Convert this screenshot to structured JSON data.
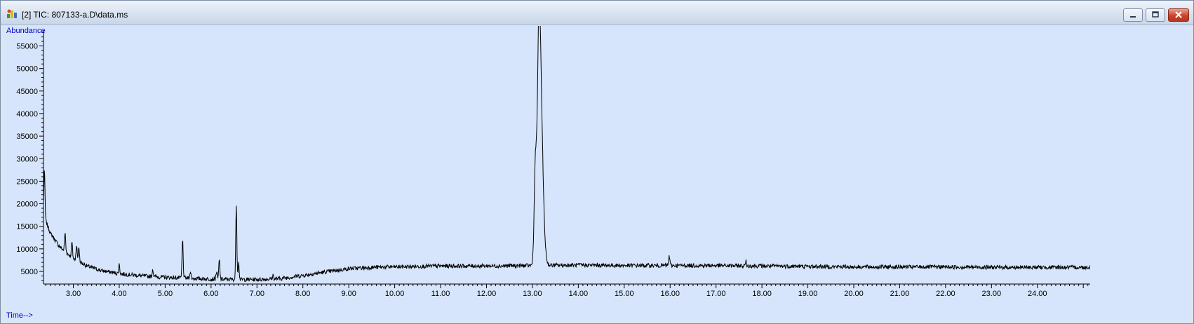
{
  "window": {
    "title": "[2] TIC: 807133-a.D\\data.ms",
    "colors": {
      "plot_bg": "#d6e5fb",
      "trace": "#000000",
      "axis_label": "#0000c8"
    }
  },
  "chart_data": {
    "type": "line",
    "ylabel": "Abundance",
    "xlabel": "Time-->",
    "xlim": [
      2.35,
      25.15
    ],
    "ylim": [
      2200,
      58500
    ],
    "x_ticks": [
      "3.00",
      "4.00",
      "5.00",
      "6.00",
      "7.00",
      "8.00",
      "9.00",
      "10.00",
      "11.00",
      "12.00",
      "13.00",
      "14.00",
      "15.00",
      "16.00",
      "17.00",
      "18.00",
      "19.00",
      "20.00",
      "21.00",
      "22.00",
      "23.00",
      "24.00"
    ],
    "y_ticks": [
      "5000",
      "10000",
      "15000",
      "20000",
      "25000",
      "30000",
      "35000",
      "40000",
      "45000",
      "50000",
      "55000"
    ],
    "baseline": [
      [
        2.35,
        17500
      ],
      [
        2.5,
        13500
      ],
      [
        2.7,
        10500
      ],
      [
        3.0,
        7800
      ],
      [
        3.3,
        6200
      ],
      [
        3.6,
        5200
      ],
      [
        4.0,
        4500
      ],
      [
        4.5,
        4000
      ],
      [
        5.0,
        3700
      ],
      [
        5.5,
        3500
      ],
      [
        6.0,
        3300
      ],
      [
        6.5,
        3200
      ],
      [
        7.0,
        3200
      ],
      [
        7.5,
        3400
      ],
      [
        8.0,
        4100
      ],
      [
        8.5,
        4900
      ],
      [
        9.0,
        5600
      ],
      [
        9.5,
        5900
      ],
      [
        10.0,
        6000
      ],
      [
        11.0,
        6200
      ],
      [
        12.0,
        6200
      ],
      [
        13.0,
        6300
      ],
      [
        14.0,
        6400
      ],
      [
        15.0,
        6300
      ],
      [
        16.0,
        6300
      ],
      [
        17.0,
        6300
      ],
      [
        18.0,
        6200
      ],
      [
        19.0,
        6100
      ],
      [
        20.0,
        6000
      ],
      [
        21.0,
        6000
      ],
      [
        22.0,
        6000
      ],
      [
        23.0,
        5900
      ],
      [
        24.0,
        5900
      ],
      [
        25.15,
        5900
      ]
    ],
    "peaks": [
      {
        "rt": 2.37,
        "height": 27500
      },
      {
        "rt": 2.82,
        "height": 13500
      },
      {
        "rt": 2.97,
        "height": 11500
      },
      {
        "rt": 3.07,
        "height": 10800
      },
      {
        "rt": 3.12,
        "height": 10500
      },
      {
        "rt": 4.0,
        "height": 6500
      },
      {
        "rt": 4.73,
        "height": 5500
      },
      {
        "rt": 5.38,
        "height": 12000
      },
      {
        "rt": 5.55,
        "height": 5200
      },
      {
        "rt": 6.12,
        "height": 5000
      },
      {
        "rt": 6.18,
        "height": 7500
      },
      {
        "rt": 6.55,
        "height": 20000
      },
      {
        "rt": 6.6,
        "height": 7000
      },
      {
        "rt": 7.35,
        "height": 4200
      },
      {
        "rt": 13.07,
        "height": 31500
      },
      {
        "rt": 13.15,
        "height": 55500
      },
      {
        "rt": 15.98,
        "height": 8500
      },
      {
        "rt": 17.65,
        "height": 7200
      }
    ]
  }
}
